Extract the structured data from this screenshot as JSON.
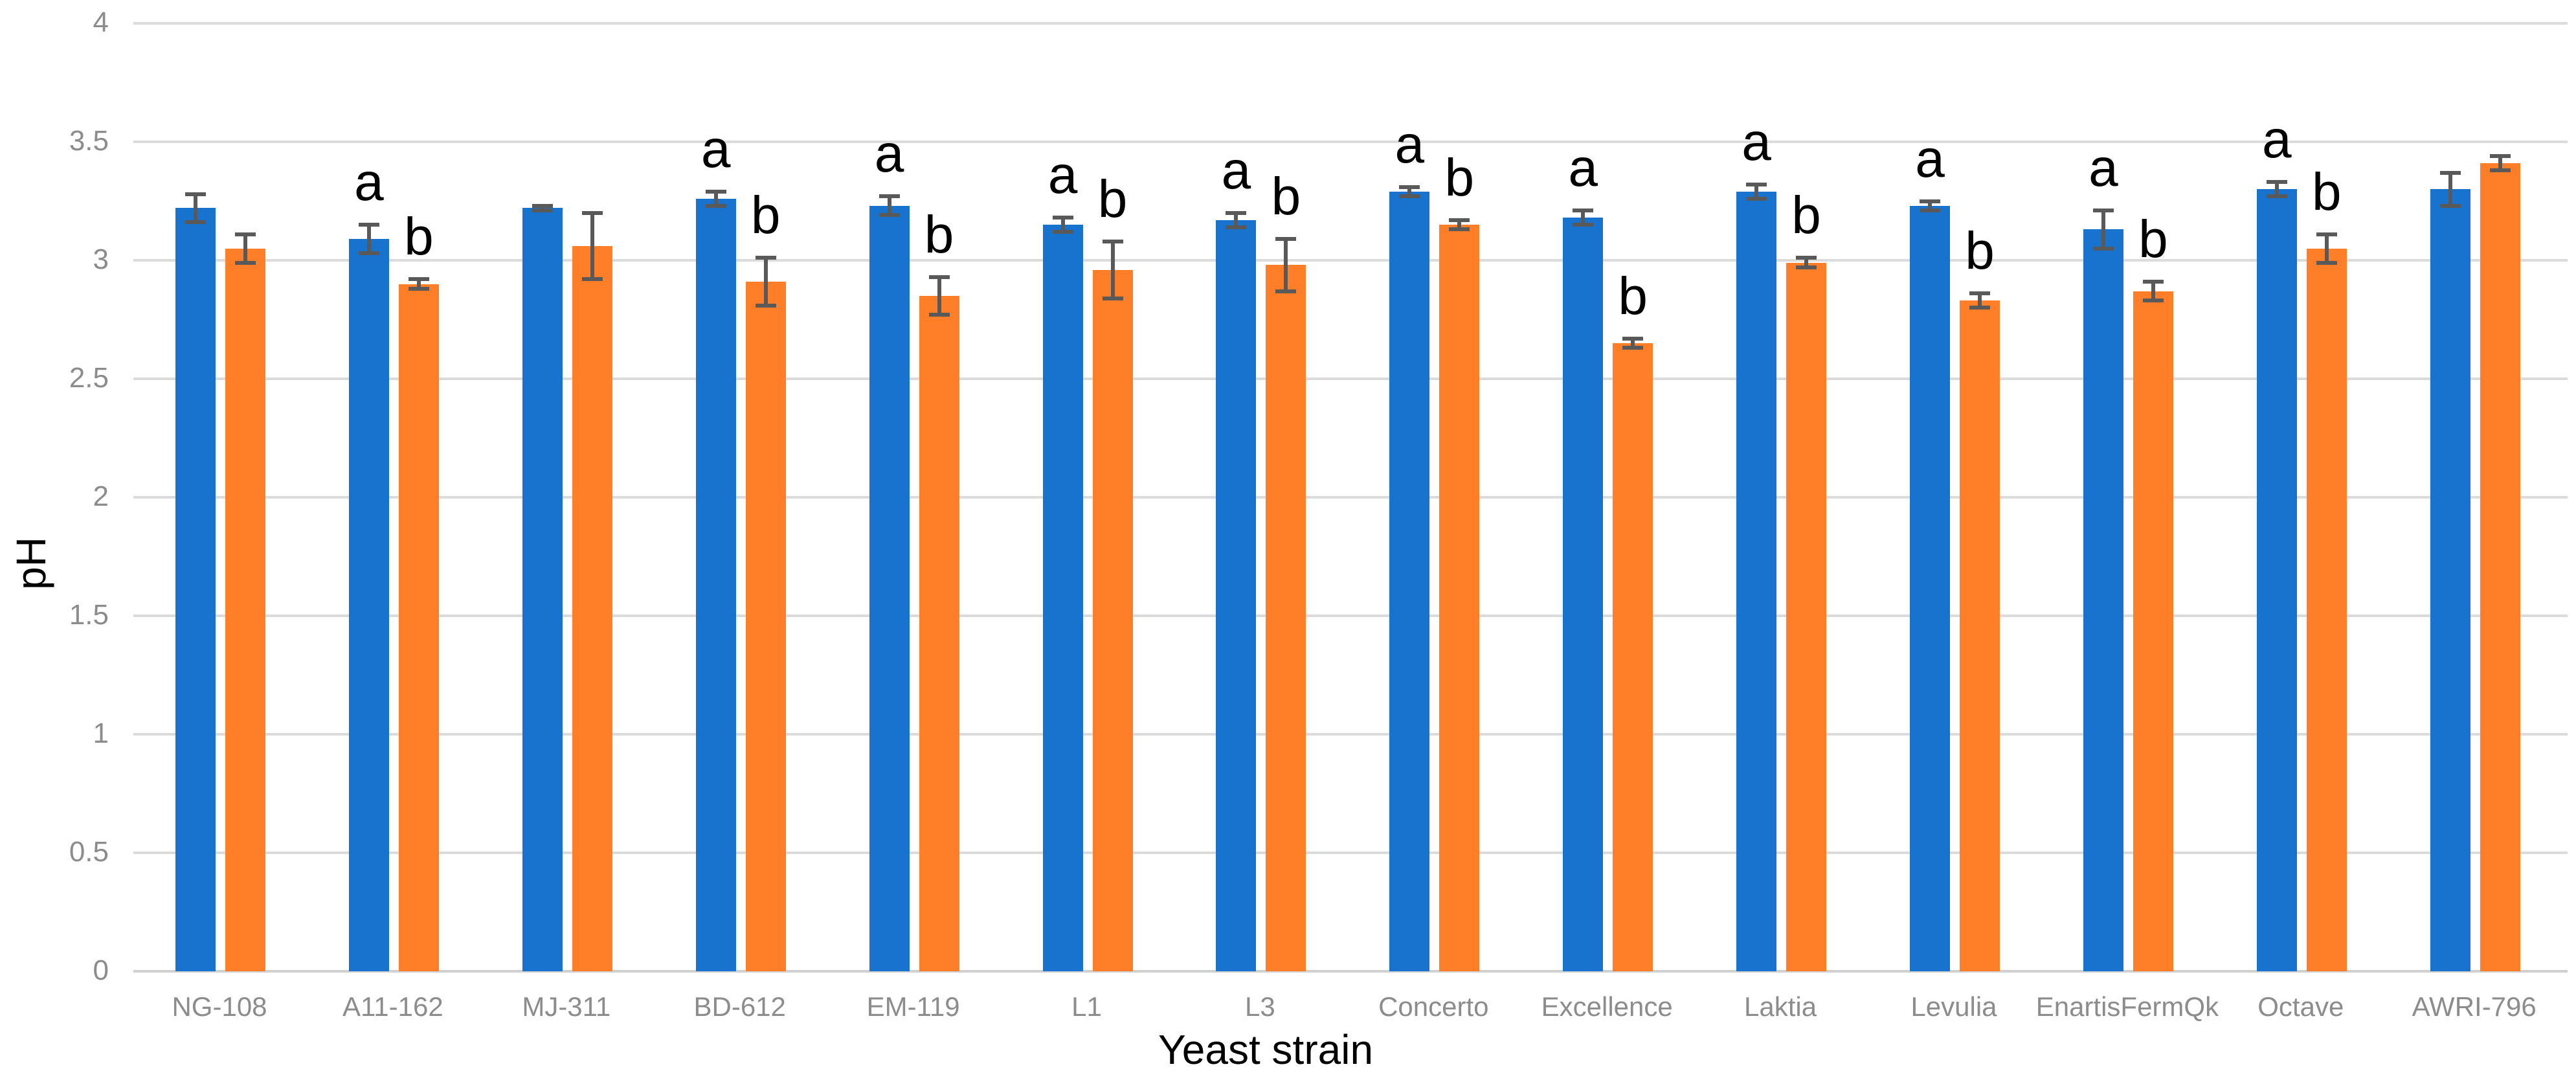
{
  "chart_data": {
    "type": "bar",
    "title": "",
    "xlabel": "Yeast strain",
    "ylabel": "pH",
    "ylim": [
      0,
      4
    ],
    "ytick_step": 0.5,
    "ytick_labels": [
      "0",
      "0.5",
      "1",
      "1.5",
      "2",
      "2.5",
      "3",
      "3.5",
      "4"
    ],
    "grid": true,
    "legend_position": "none",
    "categories": [
      "NG-108",
      "A11-162",
      "MJ-311",
      "BD-612",
      "EM-119",
      "L1",
      "L3",
      "Concerto",
      "Excellence",
      "Laktia",
      "Levulia",
      "EnartisFermQk",
      "Octave",
      "AWRI-796"
    ],
    "series": [
      {
        "name": "blue-series",
        "color": "#1773CD",
        "values": [
          3.22,
          3.09,
          3.22,
          3.26,
          3.23,
          3.15,
          3.17,
          3.29,
          3.18,
          3.29,
          3.23,
          3.13,
          3.3,
          3.3
        ],
        "errors": [
          0.06,
          0.06,
          0.01,
          0.03,
          0.04,
          0.03,
          0.03,
          0.02,
          0.03,
          0.03,
          0.02,
          0.08,
          0.03,
          0.07
        ],
        "letters": [
          "",
          "a",
          "",
          "a",
          "a",
          "a",
          "a",
          "a",
          "a",
          "a",
          "a",
          "a",
          "a",
          ""
        ]
      },
      {
        "name": "orange-series",
        "color": "#FF7E27",
        "values": [
          3.05,
          2.9,
          3.06,
          2.91,
          2.85,
          2.96,
          2.98,
          3.15,
          2.65,
          2.99,
          2.83,
          2.87,
          3.05,
          3.41
        ],
        "errors": [
          0.06,
          0.02,
          0.14,
          0.1,
          0.08,
          0.12,
          0.11,
          0.02,
          0.02,
          0.02,
          0.03,
          0.04,
          0.06,
          0.03
        ],
        "letters": [
          "",
          "b",
          "",
          "b",
          "b",
          "b",
          "b",
          "b",
          "b",
          "b",
          "b",
          "b",
          "b",
          ""
        ]
      }
    ],
    "error_bar_color": "#595959",
    "annotation_color": "#000000",
    "axis_text_color": "#8C8C8C",
    "gridline_color": "#DBDBDB",
    "baseline_color": "#D0D0D0",
    "background_color": "#FFFFFF"
  }
}
